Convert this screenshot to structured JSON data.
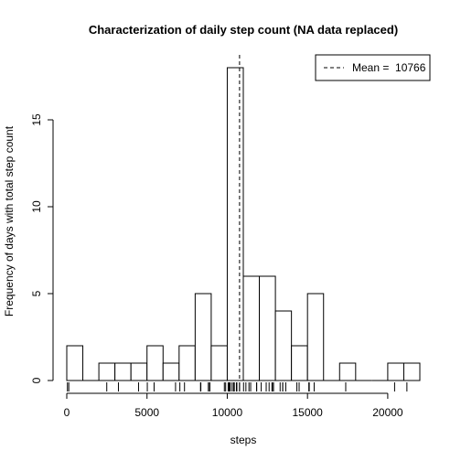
{
  "chart_data": {
    "type": "bar",
    "title": "Characterization of daily step count (NA data replaced)",
    "xlabel": "steps",
    "ylabel": "Frequency of days with total step count",
    "xlim": [
      0,
      22000
    ],
    "ylim": [
      0,
      18
    ],
    "bin_width": 1000,
    "bins": [
      {
        "start": 0,
        "end": 1000,
        "count": 2
      },
      {
        "start": 1000,
        "end": 2000,
        "count": 0
      },
      {
        "start": 2000,
        "end": 3000,
        "count": 1
      },
      {
        "start": 3000,
        "end": 4000,
        "count": 1
      },
      {
        "start": 4000,
        "end": 5000,
        "count": 1
      },
      {
        "start": 5000,
        "end": 6000,
        "count": 2
      },
      {
        "start": 6000,
        "end": 7000,
        "count": 1
      },
      {
        "start": 7000,
        "end": 8000,
        "count": 2
      },
      {
        "start": 8000,
        "end": 9000,
        "count": 5
      },
      {
        "start": 9000,
        "end": 10000,
        "count": 2
      },
      {
        "start": 10000,
        "end": 11000,
        "count": 18
      },
      {
        "start": 11000,
        "end": 12000,
        "count": 6
      },
      {
        "start": 12000,
        "end": 13000,
        "count": 6
      },
      {
        "start": 13000,
        "end": 14000,
        "count": 4
      },
      {
        "start": 14000,
        "end": 15000,
        "count": 2
      },
      {
        "start": 15000,
        "end": 16000,
        "count": 5
      },
      {
        "start": 16000,
        "end": 17000,
        "count": 0
      },
      {
        "start": 17000,
        "end": 18000,
        "count": 1
      },
      {
        "start": 18000,
        "end": 19000,
        "count": 0
      },
      {
        "start": 19000,
        "end": 20000,
        "count": 0
      },
      {
        "start": 20000,
        "end": 21000,
        "count": 1
      },
      {
        "start": 21000,
        "end": 22000,
        "count": 1
      }
    ],
    "x_ticks": [
      0,
      5000,
      10000,
      15000,
      20000
    ],
    "y_ticks": [
      0,
      5,
      10,
      15
    ],
    "mean": 10766,
    "legend": {
      "label": "Mean =  10766",
      "position": "top-right",
      "line_style": "dashed"
    },
    "rug": [
      41,
      126,
      2492,
      3219,
      4472,
      5018,
      5441,
      6778,
      7047,
      7336,
      8334,
      8355,
      8821,
      8841,
      8918,
      9819,
      9900,
      10056,
      10119,
      10139,
      10183,
      10304,
      10395,
      10439,
      10571,
      10600,
      10765,
      10766,
      11015,
      11162,
      11352,
      11458,
      11829,
      11834,
      12116,
      12426,
      12608,
      12787,
      12811,
      12883,
      13294,
      13452,
      13460,
      13646,
      14339,
      14478,
      15084,
      15098,
      15110,
      15414,
      17382,
      20427,
      21194
    ]
  }
}
